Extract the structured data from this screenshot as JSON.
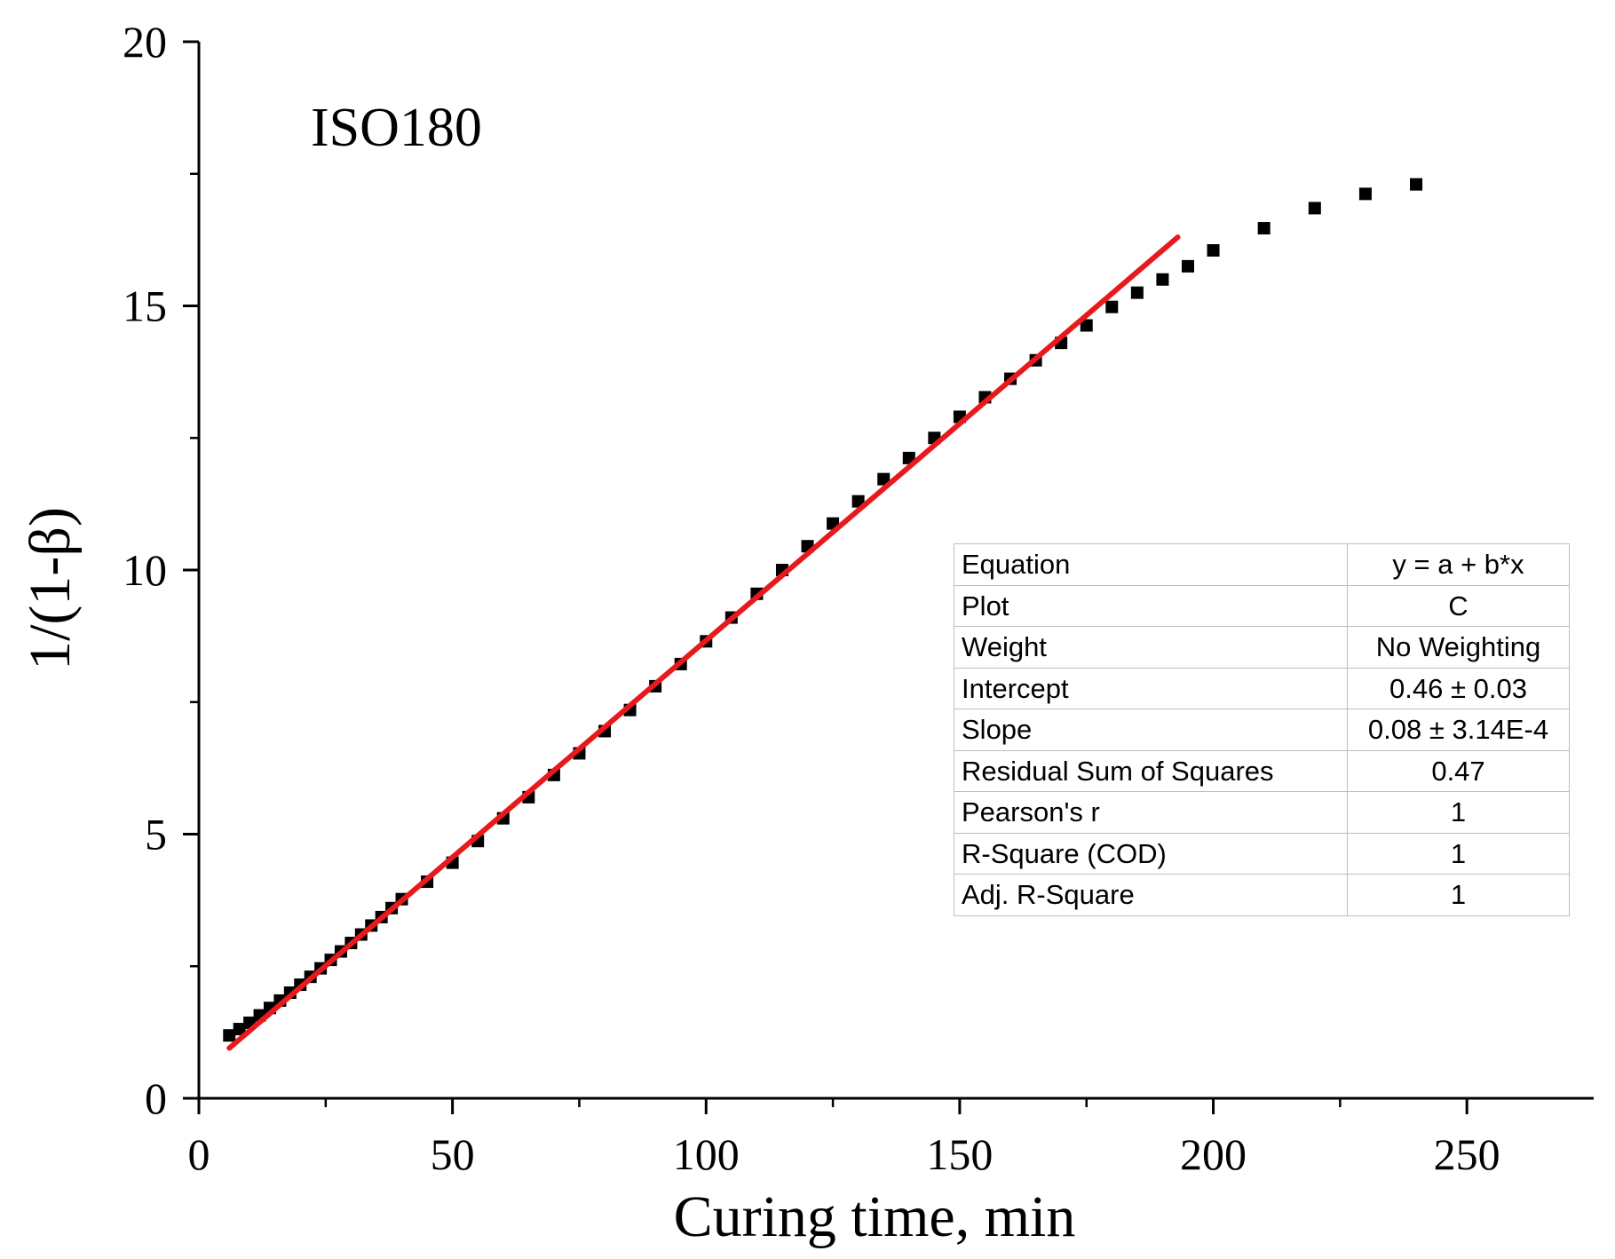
{
  "chart_data": {
    "type": "scatter",
    "panel_label": "ISO180",
    "xlabel": "Curing time, min",
    "ylabel": "1/(1-β)",
    "xlim": [
      0,
      275
    ],
    "ylim": [
      0,
      20
    ],
    "x_ticks": [
      "0",
      "50",
      "100",
      "150",
      "200",
      "250"
    ],
    "x_tick_values": [
      0,
      50,
      100,
      150,
      200,
      250
    ],
    "y_ticks": [
      "0",
      "5",
      "10",
      "15",
      "20"
    ],
    "y_tick_values": [
      0,
      5,
      10,
      15,
      20
    ],
    "series": [
      {
        "name": "data",
        "marker": "square",
        "color": "#000000",
        "x": [
          6,
          8,
          10,
          12,
          14,
          16,
          18,
          20,
          22,
          24,
          26,
          28,
          30,
          32,
          34,
          36,
          38,
          40,
          45,
          50,
          55,
          60,
          65,
          70,
          75,
          80,
          85,
          90,
          95,
          100,
          105,
          110,
          115,
          120,
          125,
          130,
          135,
          140,
          145,
          150,
          155,
          160,
          165,
          170,
          175,
          180,
          185,
          190,
          195,
          200,
          210,
          220,
          230,
          240
        ],
        "y": [
          1.19,
          1.31,
          1.43,
          1.57,
          1.71,
          1.85,
          2.0,
          2.15,
          2.3,
          2.46,
          2.62,
          2.78,
          2.94,
          3.1,
          3.27,
          3.43,
          3.6,
          3.77,
          4.1,
          4.46,
          4.87,
          5.3,
          5.7,
          6.12,
          6.53,
          6.95,
          7.35,
          7.8,
          8.22,
          8.65,
          9.1,
          9.55,
          10.0,
          10.45,
          10.88,
          11.3,
          11.72,
          12.12,
          12.5,
          12.9,
          13.27,
          13.62,
          13.97,
          14.3,
          14.63,
          14.98,
          15.25,
          15.5,
          15.75,
          16.05,
          16.47,
          16.85,
          17.12,
          17.3
        ]
      },
      {
        "name": "linear fit",
        "type": "line",
        "color": "#e8191d",
        "x": [
          6,
          193
        ],
        "y": [
          0.95,
          16.3
        ]
      }
    ]
  },
  "fit_table": {
    "rows": [
      {
        "key": "Equation",
        "value": "y = a + b*x"
      },
      {
        "key": "Plot",
        "value": "C"
      },
      {
        "key": "Weight",
        "value": "No Weighting"
      },
      {
        "key": "Intercept",
        "value": "0.46 ± 0.03"
      },
      {
        "key": "Slope",
        "value": "0.08 ± 3.14E-4"
      },
      {
        "key": "Residual Sum of Squares",
        "value": "0.47"
      },
      {
        "key": "Pearson's r",
        "value": "1"
      },
      {
        "key": "R-Square (COD)",
        "value": "1"
      },
      {
        "key": "Adj. R-Square",
        "value": "1"
      }
    ]
  }
}
